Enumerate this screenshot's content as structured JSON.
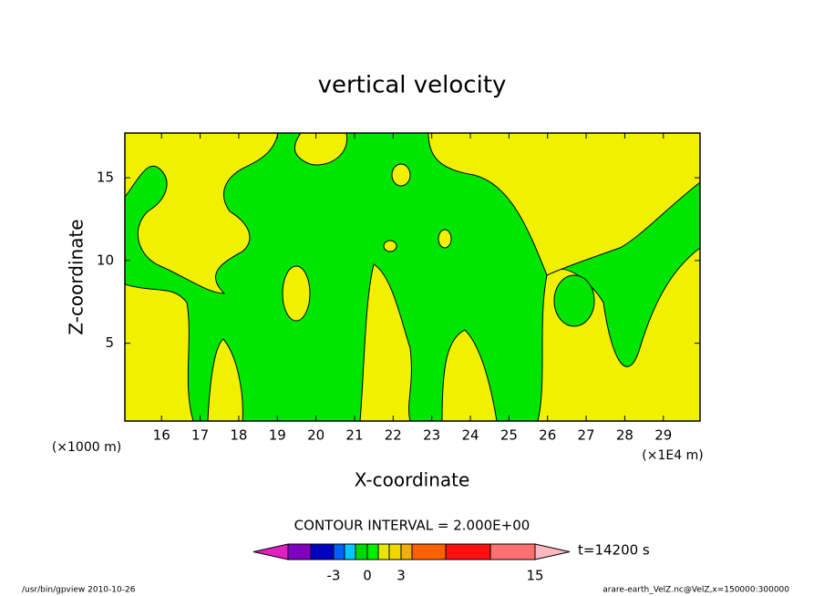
{
  "chart_data": {
    "type": "contour",
    "title": "vertical velocity",
    "x_label": "X-coordinate",
    "y_label": "Z-coordinate",
    "x_unit": "(×1E4 m)",
    "y_unit": "(×1000 m)",
    "xlim": [
      15.05,
      29.95
    ],
    "xticks": [
      16,
      17,
      18,
      19,
      20,
      21,
      22,
      23,
      24,
      25,
      26,
      27,
      28,
      29
    ],
    "ylim": [
      0.3,
      17.7
    ],
    "yticks": [
      5,
      10,
      15
    ],
    "contour_interval": "CONTOUR INTERVAL = 2.000E+00",
    "time_label": "t=14200 s",
    "colorbar": {
      "colors": [
        "#e020c0",
        "#8000c0",
        "#0000c0",
        "#0060ff",
        "#00c8ff",
        "#00d800",
        "#00f000",
        "#e6e600",
        "#f0d800",
        "#f0b000",
        "#ff6000",
        "#ff1010",
        "#ff7070",
        "#ffb8c0"
      ],
      "ticks": [
        -3,
        0,
        3,
        15
      ]
    },
    "footer_left": "/usr/bin/gpview   2010-10-26",
    "footer_right": "arare-earth_VelZ.nc@VelZ,x=150000:300000"
  }
}
